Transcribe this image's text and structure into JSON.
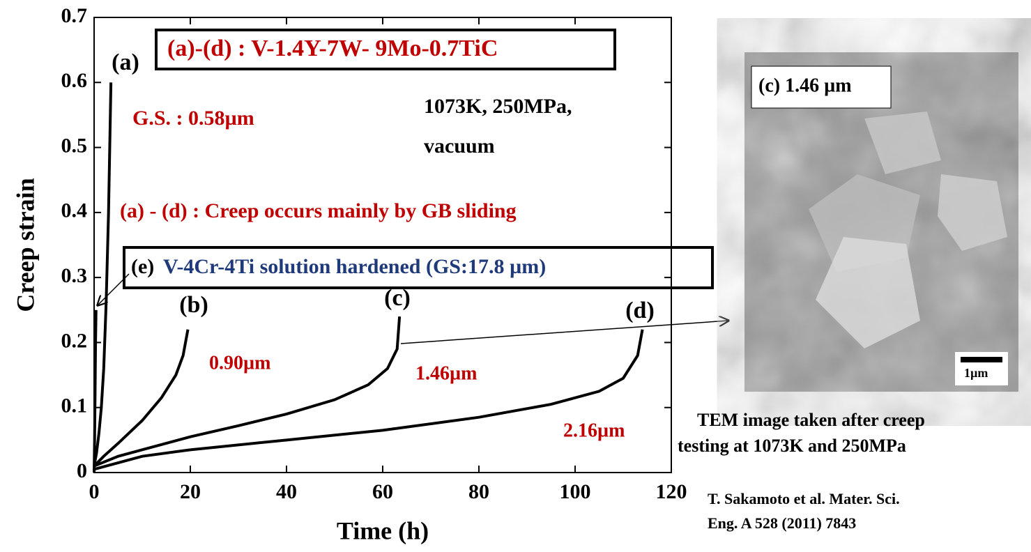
{
  "chart_data": {
    "type": "line",
    "xlabel": "Time (h)",
    "ylabel": "Creep strain",
    "xlim": [
      0,
      120
    ],
    "xticks": [
      0,
      20,
      40,
      60,
      80,
      100,
      120
    ],
    "ylim": [
      0,
      0.7
    ],
    "yticks": [
      0,
      0.1,
      0.2,
      0.3,
      0.4,
      0.5,
      0.6,
      0.7
    ],
    "series": [
      {
        "name": "(a)",
        "color": "#000000",
        "x": [
          0,
          0.5,
          1,
          1.5,
          2,
          2.5,
          3,
          3.5
        ],
        "values": [
          0.01,
          0.03,
          0.06,
          0.1,
          0.16,
          0.26,
          0.4,
          0.6
        ]
      },
      {
        "name": "(b)",
        "color": "#000000",
        "x": [
          0,
          2,
          5,
          10,
          14,
          17,
          18.5,
          19.5
        ],
        "values": [
          0.01,
          0.025,
          0.045,
          0.08,
          0.115,
          0.15,
          0.18,
          0.22
        ]
      },
      {
        "name": "(c)",
        "color": "#000000",
        "x": [
          0,
          5,
          10,
          20,
          30,
          40,
          50,
          57,
          61,
          63,
          63.5
        ],
        "values": [
          0.01,
          0.025,
          0.035,
          0.055,
          0.072,
          0.09,
          0.112,
          0.135,
          0.16,
          0.19,
          0.24
        ]
      },
      {
        "name": "(d)",
        "color": "#000000",
        "x": [
          0,
          10,
          20,
          40,
          60,
          80,
          95,
          105,
          110,
          113,
          114
        ],
        "values": [
          0.005,
          0.025,
          0.035,
          0.05,
          0.065,
          0.085,
          0.105,
          0.125,
          0.145,
          0.18,
          0.22
        ]
      },
      {
        "color": "#000000",
        "x": [
          0,
          0.1,
          0.2,
          0.3,
          0.4
        ],
        "values": [
          0,
          0.05,
          0.12,
          0.2,
          0.25
        ]
      }
    ],
    "annotations": [
      {
        "text": "(a)-(d) : V-1.4Y-7W- 9Mo-0.7TiC",
        "color": "#c00000"
      },
      {
        "text": "G.S. : 0.58µm",
        "color": "#c00000"
      },
      {
        "text": "1073K, 250MPa,",
        "color": "#000000"
      },
      {
        "text": "vacuum",
        "color": "#000000"
      },
      {
        "text": "(a) - (d) : Creep occurs mainly by GB sliding",
        "color": "#c00000"
      },
      {
        "text": "(e)",
        "color": "#000000"
      },
      {
        "text": "V-4Cr-4Ti solution hardened (GS:17.8 µm)",
        "color": "#1f3a7a"
      },
      {
        "text": "0.90µm",
        "color": "#c00000"
      },
      {
        "text": "1.46µm",
        "color": "#c00000"
      },
      {
        "text": "2.16µm",
        "color": "#c00000"
      },
      {
        "text": "(c) 1.46 µm",
        "color": "#000000"
      },
      {
        "text": "1µm",
        "color": "#000000"
      },
      {
        "text": "TEM image taken after creep",
        "color": "#000000"
      },
      {
        "text": "testing at 1073K and 250MPa",
        "color": "#000000"
      },
      {
        "text": "T. Sakamoto et al. Mater. Sci.",
        "color": "#000000"
      },
      {
        "text": "Eng. A 528 (2011) 7843",
        "color": "#000000"
      }
    ]
  }
}
